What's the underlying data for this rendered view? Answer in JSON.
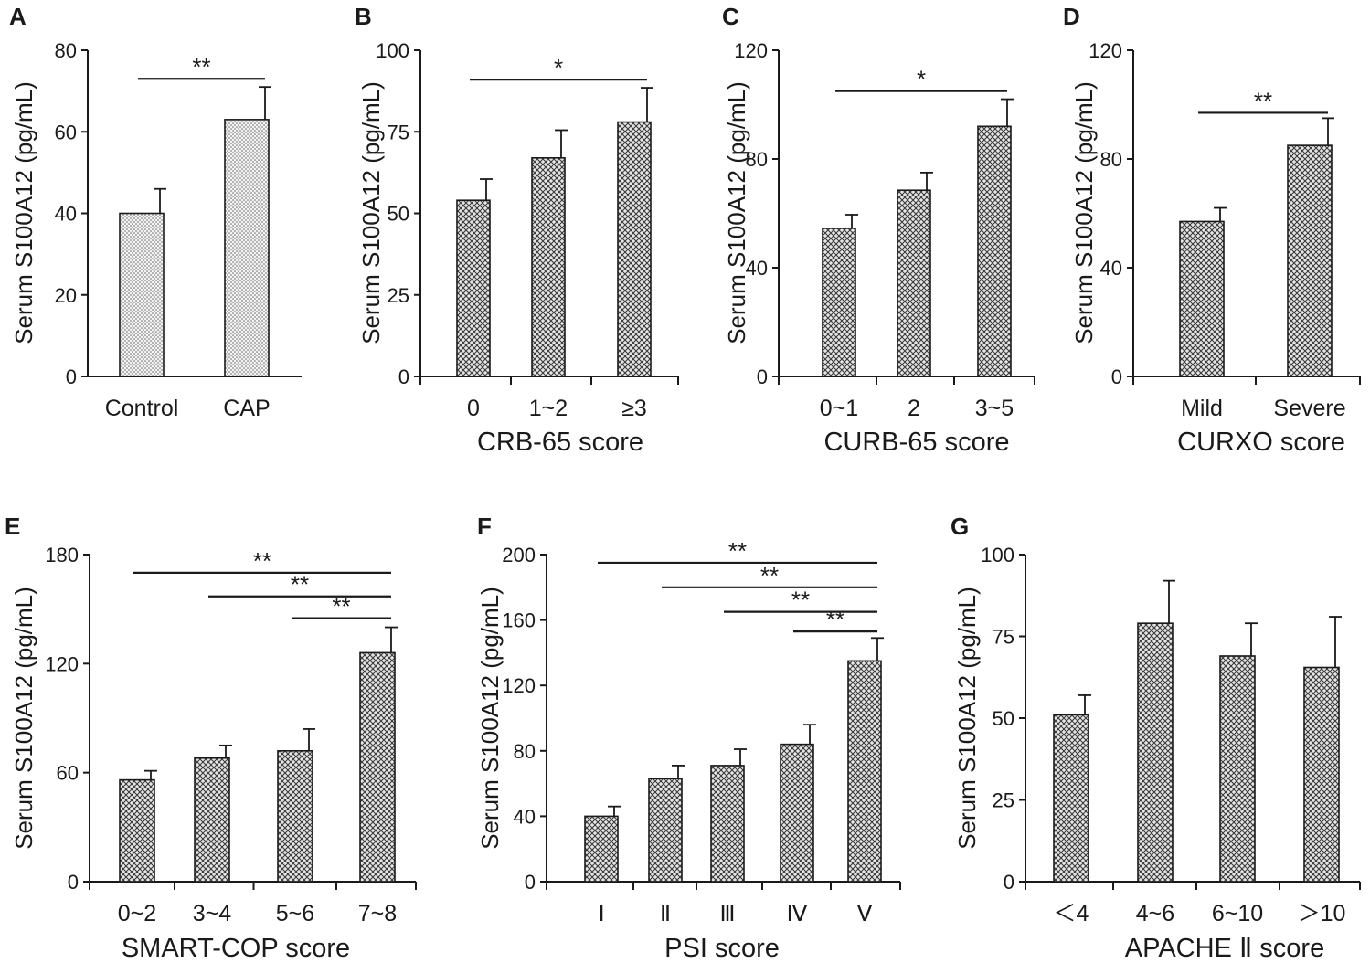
{
  "chart_data": [
    {
      "panel": "A",
      "type": "bar",
      "title": "",
      "xlabel": "",
      "ylabel": "Serum S100A12 (pg/mL)",
      "categories": [
        "Control",
        "CAP"
      ],
      "values": [
        40,
        63
      ],
      "errors": [
        6,
        8
      ],
      "ylim": [
        0,
        80
      ],
      "yticks": [
        0,
        20,
        40,
        60,
        80
      ],
      "pattern": "dots",
      "significance": [
        {
          "from": 0,
          "to": 1,
          "y": 73,
          "label": "**"
        }
      ]
    },
    {
      "panel": "B",
      "type": "bar",
      "title": "",
      "xlabel": "CRB-65 score",
      "ylabel": "Serum S100A12 (pg/mL)",
      "categories": [
        "0",
        "1~2",
        "≥3"
      ],
      "values": [
        54,
        67,
        78
      ],
      "errors": [
        6.5,
        8.5,
        10.5
      ],
      "ylim": [
        0,
        100
      ],
      "yticks": [
        0,
        25,
        50,
        75,
        100
      ],
      "pattern": "crosshatch",
      "significance": [
        {
          "from": 0,
          "to": 2,
          "y": 91,
          "label": "*"
        }
      ]
    },
    {
      "panel": "C",
      "type": "bar",
      "title": "",
      "xlabel": "CURB-65 score",
      "ylabel": "Serum S100A12 (pg/mL)",
      "categories": [
        "0~1",
        "2",
        "3~5"
      ],
      "values": [
        54.5,
        68.5,
        92
      ],
      "errors": [
        5,
        6.5,
        10
      ],
      "ylim": [
        0,
        120
      ],
      "yticks": [
        0,
        40,
        80,
        120
      ],
      "pattern": "crosshatch",
      "significance": [
        {
          "from": 0,
          "to": 2,
          "y": 105,
          "label": "*"
        }
      ]
    },
    {
      "panel": "D",
      "type": "bar",
      "title": "",
      "xlabel": "CURXO score",
      "ylabel": "Serum S100A12 (pg/mL)",
      "categories": [
        "Mild",
        "Severe"
      ],
      "values": [
        57,
        85
      ],
      "errors": [
        5,
        10
      ],
      "ylim": [
        0,
        120
      ],
      "yticks": [
        0,
        40,
        80,
        120
      ],
      "pattern": "crosshatch",
      "significance": [
        {
          "from": 0,
          "to": 1,
          "y": 97,
          "label": "**"
        }
      ]
    },
    {
      "panel": "E",
      "type": "bar",
      "title": "",
      "xlabel": "SMART-COP score",
      "ylabel": "Serum S100A12 (pg/mL)",
      "categories": [
        "0~2",
        "3~4",
        "5~6",
        "7~8"
      ],
      "values": [
        56,
        68,
        72,
        126
      ],
      "errors": [
        5,
        7,
        12,
        14
      ],
      "ylim": [
        0,
        180
      ],
      "yticks": [
        0,
        60,
        120,
        180
      ],
      "pattern": "crosshatch",
      "significance": [
        {
          "from": 0,
          "to": 3,
          "y": 170,
          "label": "**"
        },
        {
          "from": 1,
          "to": 3,
          "y": 157,
          "label": "**"
        },
        {
          "from": 2,
          "to": 3,
          "y": 145,
          "label": "**"
        }
      ]
    },
    {
      "panel": "F",
      "type": "bar",
      "title": "",
      "xlabel": "PSI score",
      "ylabel": "Serum S100A12 (pg/mL)",
      "categories": [
        "Ⅰ",
        "Ⅱ",
        "Ⅲ",
        "Ⅳ",
        "Ⅴ"
      ],
      "values": [
        40,
        63,
        71,
        84,
        135
      ],
      "errors": [
        6,
        8,
        10,
        12,
        14
      ],
      "ylim": [
        0,
        200
      ],
      "yticks": [
        0,
        40,
        80,
        120,
        160,
        200
      ],
      "pattern": "crosshatch",
      "significance": [
        {
          "from": 0,
          "to": 4,
          "y": 195,
          "label": "**"
        },
        {
          "from": 1,
          "to": 4,
          "y": 180,
          "label": "**"
        },
        {
          "from": 2,
          "to": 4,
          "y": 165,
          "label": "**"
        },
        {
          "from": 3,
          "to": 4,
          "y": 153,
          "label": "**"
        }
      ]
    },
    {
      "panel": "G",
      "type": "bar",
      "title": "",
      "xlabel": "APACHE Ⅱ score",
      "ylabel": "Serum S100A12 (pg/mL)",
      "categories": [
        "＜4",
        "4~6",
        "6~10",
        "＞10"
      ],
      "values": [
        51,
        79,
        69,
        65.5
      ],
      "errors": [
        6,
        13,
        10,
        15.5
      ],
      "ylim": [
        0,
        100
      ],
      "yticks": [
        0,
        25,
        50,
        75,
        100
      ],
      "pattern": "crosshatch",
      "significance": []
    }
  ]
}
